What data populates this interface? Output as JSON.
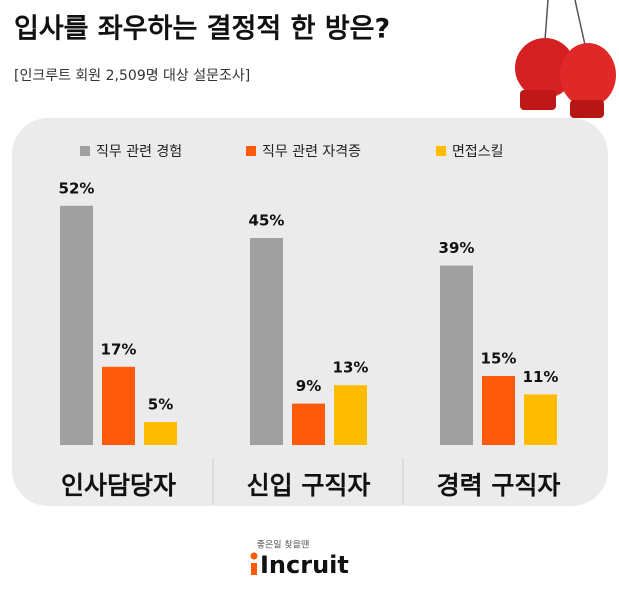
{
  "chart_data": {
    "type": "bar",
    "title": "입사를 좌우하는 결정적 한 방은?",
    "subtitle": "[인크루트 회원 2,509명 대상 설문조사]",
    "categories": [
      "인사담당자",
      "신입 구직자",
      "경력 구직자"
    ],
    "series": [
      {
        "name": "직무 관련 경험",
        "color": "#a0a0a0",
        "values": [
          52,
          45,
          39
        ],
        "value_labels": [
          "52%",
          "45%",
          "39%"
        ]
      },
      {
        "name": "직무 관련 자격증",
        "color": "#ff5a0a",
        "values": [
          17,
          9,
          15
        ],
        "value_labels": [
          "17%",
          "9%",
          "15%"
        ]
      },
      {
        "name": "면접스킬",
        "color": "#ffbb00",
        "values": [
          5,
          13,
          11
        ],
        "value_labels": [
          "5%",
          "13%",
          "11%"
        ]
      }
    ],
    "logo_tagline": "좋은일 찾을땐",
    "logo": "Incruit"
  }
}
